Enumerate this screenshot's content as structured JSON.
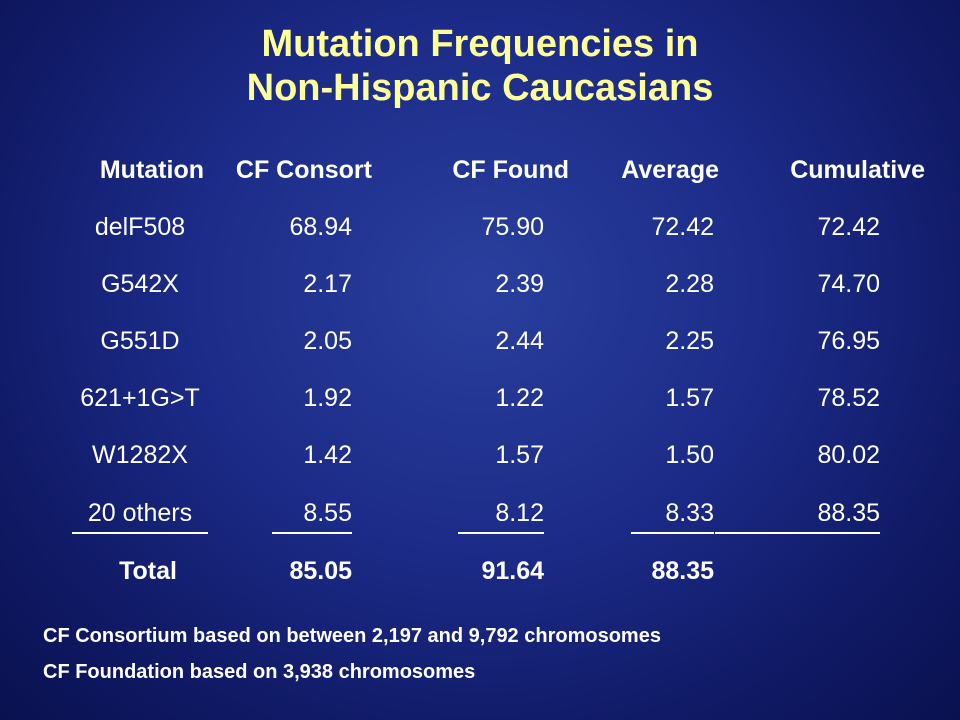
{
  "title": {
    "line1": "Mutation Frequencies in",
    "line2": "Non-Hispanic Caucasians"
  },
  "table": {
    "headers": [
      "Mutation",
      "CF Consort",
      "CF Found",
      "Average",
      "Cumulative"
    ],
    "rows": [
      [
        "delF508",
        "68.94",
        "75.90",
        "72.42",
        "72.42"
      ],
      [
        "G542X",
        "2.17",
        "2.39",
        "2.28",
        "74.70"
      ],
      [
        "G551D",
        "2.05",
        "2.44",
        "2.25",
        "76.95"
      ],
      [
        "621+1G>T",
        "1.92",
        "1.22",
        "1.57",
        "78.52"
      ],
      [
        "W1282X",
        "1.42",
        "1.57",
        "1.50",
        "80.02"
      ],
      [
        "20 others",
        "8.55",
        "8.12",
        "8.33",
        "88.35"
      ]
    ],
    "total": [
      "Total",
      "85.05",
      "91.64",
      "88.35",
      ""
    ]
  },
  "notes": [
    "CF Consortium based on between 2,197 and 9,792 chromosomes",
    "CF Foundation based on 3,938 chromosomes"
  ]
}
